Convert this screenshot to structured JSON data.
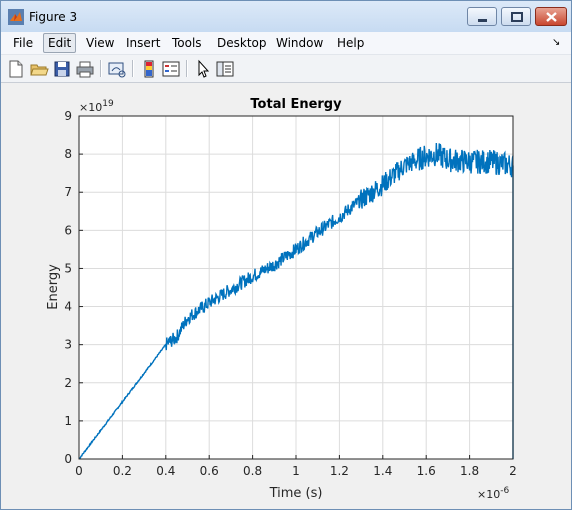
{
  "window": {
    "title": "Figure 3",
    "icon": "matlab-icon",
    "controls": [
      "minimize-icon",
      "maximize-icon",
      "close-icon"
    ]
  },
  "menu": {
    "items": [
      {
        "label": "File"
      },
      {
        "label": "Edit"
      },
      {
        "label": "View"
      },
      {
        "label": "Insert"
      },
      {
        "label": "Tools"
      },
      {
        "label": "Desktop"
      },
      {
        "label": "Window"
      },
      {
        "label": "Help"
      }
    ],
    "active": "Edit",
    "overflow_glyph": "↘"
  },
  "toolbar": {
    "buttons": [
      "new-figure-icon",
      "open-file-icon",
      "save-icon",
      "print-icon",
      "link-plot-icon",
      "colorbar-icon",
      "legend-icon",
      "pointer-icon",
      "property-editor-icon"
    ]
  },
  "chart_data": {
    "type": "line",
    "title": "Total Energy",
    "xlabel": "Time (s)",
    "ylabel": "Energy",
    "x_exponent_label": "×10",
    "x_exponent": "-6",
    "y_exponent_label": "×10",
    "y_exponent": "19",
    "xlim": [
      0,
      2
    ],
    "ylim": [
      0,
      9
    ],
    "xticks": [
      "0",
      "0.2",
      "0.4",
      "0.6",
      "0.8",
      "1",
      "1.2",
      "1.4",
      "1.6",
      "1.8",
      "2"
    ],
    "yticks": [
      "0",
      "1",
      "2",
      "3",
      "4",
      "5",
      "6",
      "7",
      "8",
      "9"
    ],
    "grid": true,
    "series_color": "#0072bd",
    "x": [
      0,
      0.1,
      0.2,
      0.3,
      0.4,
      0.45,
      0.5,
      0.6,
      0.7,
      0.8,
      0.9,
      1.0,
      1.1,
      1.2,
      1.3,
      1.4,
      1.5,
      1.6,
      1.65,
      1.7,
      1.8,
      1.9,
      2.0
    ],
    "values": [
      0,
      0.75,
      1.5,
      2.25,
      3.0,
      3.2,
      3.7,
      4.1,
      4.45,
      4.8,
      5.1,
      5.5,
      5.95,
      6.35,
      6.8,
      7.2,
      7.7,
      7.95,
      8.0,
      7.85,
      7.8,
      7.8,
      7.7
    ]
  }
}
